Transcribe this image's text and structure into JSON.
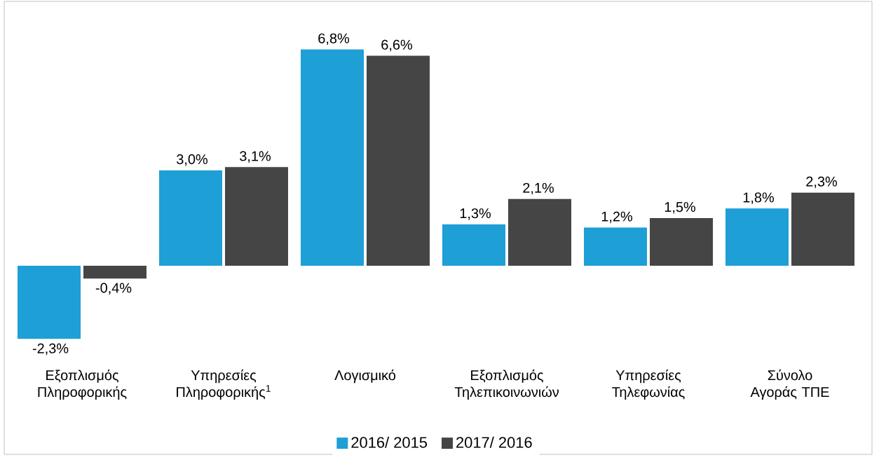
{
  "chart_data": {
    "type": "bar",
    "categories": [
      "Εξοπλισμός Πληροφορικής",
      "Υπηρεσίες Πληροφορικής$^{1}$",
      "Λογισμικό",
      "Εξοπλισμός Τηλεπικοινωνιών",
      "Υπηρεσίες Τηλεφωνίας",
      "Σύνολο Αγοράς ΤΠΕ"
    ],
    "series": [
      {
        "name": "2016/ 2015",
        "color": "#1e9fd6",
        "values": [
          -2.3,
          3.0,
          6.8,
          1.3,
          1.2,
          1.8
        ],
        "value_labels": [
          "-2,3%",
          "3,0%",
          "6,8%",
          "1,3%",
          "1,2%",
          "1,8%"
        ]
      },
      {
        "name": "2017/ 2016",
        "color": "#454545",
        "values": [
          -0.4,
          3.1,
          6.6,
          2.1,
          1.5,
          2.3
        ],
        "value_labels": [
          "-0,4%",
          "3,1%",
          "6,6%",
          "2,1%",
          "1,5%",
          "2,3%"
        ]
      }
    ],
    "legend": "bottom"
  }
}
